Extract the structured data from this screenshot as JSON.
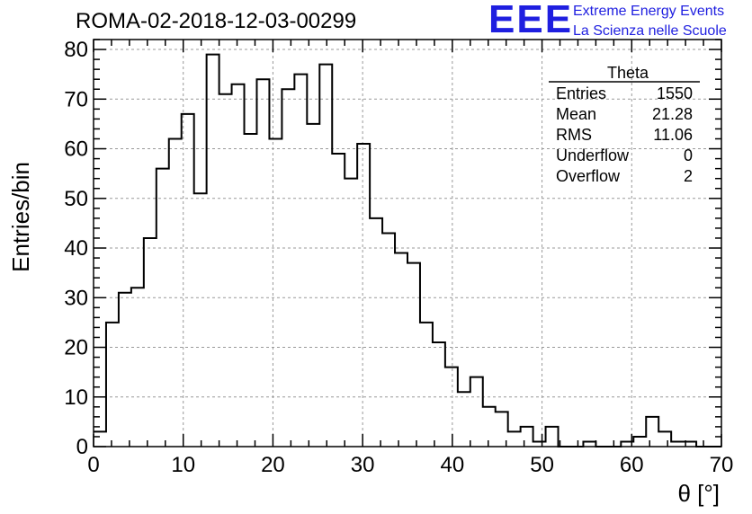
{
  "header": {
    "run_title": "ROMA-02-2018-12-03-00299",
    "logo_mark": "EEE",
    "logo_line1": "Extreme Energy Events",
    "logo_line2": "La Scienza nelle Scuole"
  },
  "colors": {
    "logo": "#1f1fe0",
    "histogram": "#000000",
    "grid": "#999999"
  },
  "chart_data": {
    "type": "histogram",
    "xlabel": "θ [°]",
    "ylabel": "Entries/bin",
    "xlim": [
      0,
      70
    ],
    "ylim": [
      0,
      82
    ],
    "x_ticks": [
      "0",
      "10",
      "20",
      "30",
      "40",
      "50",
      "60",
      "70"
    ],
    "y_ticks": [
      "0",
      "10",
      "20",
      "30",
      "40",
      "50",
      "60",
      "70",
      "80"
    ],
    "grid": true,
    "bin_width": 1.4,
    "bin_edges_start": 0,
    "values": [
      3,
      25,
      31,
      32,
      42,
      56,
      62,
      67,
      51,
      79,
      71,
      73,
      63,
      74,
      62,
      72,
      75,
      65,
      77,
      59,
      54,
      61,
      46,
      43,
      39,
      37,
      25,
      21,
      16,
      11,
      14,
      8,
      7,
      3,
      4,
      1,
      4,
      0,
      0,
      1,
      0,
      0,
      1,
      2,
      6,
      3,
      1,
      1,
      0,
      0
    ],
    "stats": {
      "title": "Theta",
      "rows": [
        {
          "label": "Entries",
          "value": "1550"
        },
        {
          "label": "Mean",
          "value": "21.28"
        },
        {
          "label": "RMS",
          "value": "11.06"
        },
        {
          "label": "Underflow",
          "value": "0"
        },
        {
          "label": "Overflow",
          "value": "2"
        }
      ]
    }
  }
}
